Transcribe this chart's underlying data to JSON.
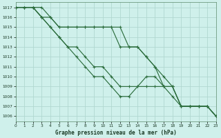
{
  "title": "Graphe pression niveau de la mer (hPa)",
  "background_color": "#cff0eb",
  "grid_color": "#b0d8d0",
  "line_color": "#2d6e3e",
  "xlim": [
    0,
    23
  ],
  "ylim": [
    1005.5,
    1017.5
  ],
  "xtick_labels": [
    "0",
    "1",
    "2",
    "3",
    "4",
    "5",
    "6",
    "7",
    "8",
    "9",
    "10",
    "11",
    "12",
    "13",
    "14",
    "15",
    "16",
    "17",
    "18",
    "19",
    "20",
    "21",
    "22",
    "23"
  ],
  "ytick_labels": [
    "1006",
    "1007",
    "1008",
    "1009",
    "1010",
    "1011",
    "1012",
    "1013",
    "1014",
    "1015",
    "1016",
    "1017"
  ],
  "ytick_vals": [
    1006,
    1007,
    1008,
    1009,
    1010,
    1011,
    1012,
    1013,
    1014,
    1015,
    1016,
    1017
  ],
  "series": [
    [
      1017,
      1017,
      1017,
      1017,
      1016,
      1015,
      1015,
      1015,
      1015,
      1015,
      1015,
      1015,
      1015,
      1013,
      1013,
      1012,
      1011,
      1010,
      1009,
      1007,
      1007,
      1007,
      1007,
      1006
    ],
    [
      1017,
      1017,
      1017,
      1016,
      1016,
      1015,
      1015,
      1015,
      1015,
      1015,
      1015,
      1015,
      1013,
      1013,
      1013,
      1012,
      1011,
      1009,
      1009,
      1007,
      1007,
      1007,
      1007,
      1006
    ],
    [
      1017,
      1017,
      1017,
      1016,
      1015,
      1014,
      1013,
      1013,
      1012,
      1011,
      1011,
      1010,
      1009,
      1009,
      1009,
      1009,
      1009,
      1009,
      1008,
      1007,
      1007,
      1007,
      1007,
      1006
    ],
    [
      1017,
      1017,
      1017,
      1016,
      1015,
      1014,
      1013,
      1012,
      1011,
      1010,
      1010,
      1009,
      1008,
      1008,
      1009,
      1010,
      1010,
      1009,
      1009,
      1007,
      1007,
      1007,
      1007,
      1006
    ]
  ]
}
